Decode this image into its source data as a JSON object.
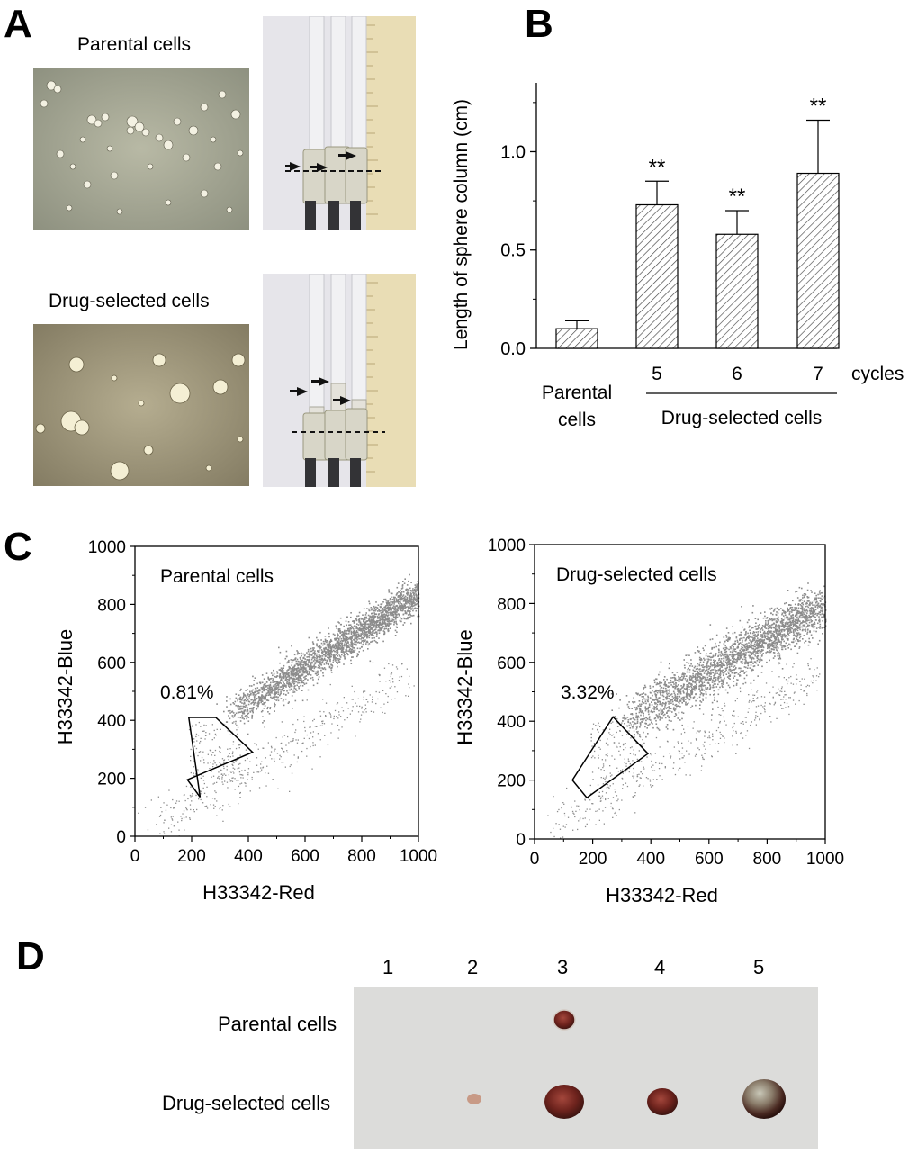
{
  "panels": {
    "a": "A",
    "b": "B",
    "c": "C",
    "d": "D"
  },
  "panel_a": {
    "top_caption": "Parental cells",
    "bottom_caption": "Drug-selected cells"
  },
  "colors": {
    "micro_bg": "#b9b59e",
    "tube_bg": "#e7e6ea",
    "ruler": "#e8dcb6",
    "bar_hatch": "#444444",
    "scatter": "#8c8c8c",
    "tumor_bg": "#dadad8",
    "tumor": "#7a2a24"
  },
  "chart_data": [
    {
      "id": "B",
      "type": "bar",
      "ylabel": "Length of sphere column (cm)",
      "ylim": [
        0,
        1.35
      ],
      "yticks": [
        "0.0",
        "0.5",
        "1.0"
      ],
      "categories": [
        "Parental cells",
        "5",
        "6",
        "7"
      ],
      "category_line1": "Parental",
      "category_line2": "cells",
      "values": [
        0.1,
        0.73,
        0.58,
        0.89
      ],
      "errors": [
        0.04,
        0.12,
        0.12,
        0.27
      ],
      "significance": [
        "",
        "**",
        "**",
        "**"
      ],
      "x_unit_label": "cycles",
      "group_label": "Drug-selected cells"
    },
    {
      "id": "C-left",
      "type": "scatter",
      "title": "Parental cells",
      "xlabel": "H33342-Red",
      "ylabel": "H33342-Blue",
      "xlim": [
        0,
        1000
      ],
      "ylim": [
        0,
        1000
      ],
      "xticks": [
        "0",
        "200",
        "400",
        "600",
        "800",
        "1000"
      ],
      "yticks": [
        "0",
        "200",
        "400",
        "600",
        "800",
        "1000"
      ],
      "gate_percent": "0.81%",
      "gate_polygon": [
        [
          190,
          410
        ],
        [
          285,
          410
        ],
        [
          415,
          290
        ],
        [
          185,
          195
        ],
        [
          230,
          135
        ]
      ],
      "main_population": {
        "from": [
          340,
          420
        ],
        "to": [
          1000,
          840
        ],
        "spread": 50
      }
    },
    {
      "id": "C-right",
      "type": "scatter",
      "title": "Drug-selected cells",
      "xlabel": "H33342-Red",
      "ylabel": "H33342-Blue",
      "xlim": [
        0,
        1000
      ],
      "ylim": [
        0,
        1000
      ],
      "xticks": [
        "0",
        "200",
        "400",
        "600",
        "800",
        "1000"
      ],
      "yticks": [
        "0",
        "200",
        "400",
        "600",
        "800",
        "1000"
      ],
      "gate_percent": "3.32%",
      "gate_polygon": [
        [
          130,
          200
        ],
        [
          270,
          415
        ],
        [
          390,
          290
        ],
        [
          180,
          140
        ]
      ],
      "main_population": {
        "from": [
          320,
          400
        ],
        "to": [
          1000,
          800
        ],
        "spread": 70
      }
    }
  ],
  "panel_d": {
    "columns": [
      "1",
      "2",
      "3",
      "4",
      "5"
    ],
    "rows": [
      "Parental cells",
      "Drug-selected cells"
    ]
  }
}
